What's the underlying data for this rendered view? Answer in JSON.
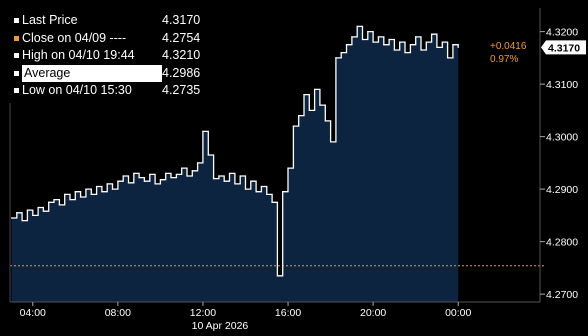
{
  "legend": [
    {
      "label": "Last Price",
      "value": "4.3170",
      "swatch": "#ffffff",
      "highlight": false
    },
    {
      "label": "Close on 04/09 ----",
      "value": "4.2754",
      "swatch": "#f29a2e",
      "highlight": false
    },
    {
      "label": "High on 04/10 19:44",
      "value": "4.3210",
      "swatch": "#ffffff",
      "highlight": false
    },
    {
      "label": "Average",
      "value": "4.2986",
      "swatch": "#ffffff",
      "highlight": true
    },
    {
      "label": "Low on 04/10 15:30",
      "value": "4.2735",
      "swatch": "#ffffff",
      "highlight": false
    }
  ],
  "last_price_tag": "4.3170",
  "change": {
    "abs": "+0.0416",
    "pct": "0.97%"
  },
  "date_label": "10 Apr 2026",
  "colors": {
    "background": "#000000",
    "area_fill": "#0d2440",
    "line": "#ffffff",
    "close_line": "#f29a2e",
    "axis_text": "#ffffff",
    "change_text": "#f29a2e"
  },
  "chart_data": {
    "type": "line",
    "series": [
      {
        "name": "Last Price",
        "x": [
          "03:00",
          "03:15",
          "03:30",
          "03:45",
          "04:00",
          "04:15",
          "04:30",
          "04:45",
          "05:00",
          "05:15",
          "05:30",
          "05:45",
          "06:00",
          "06:15",
          "06:30",
          "06:45",
          "07:00",
          "07:15",
          "07:30",
          "07:45",
          "08:00",
          "08:15",
          "08:30",
          "08:45",
          "09:00",
          "09:15",
          "09:30",
          "09:45",
          "10:00",
          "10:15",
          "10:30",
          "10:45",
          "11:00",
          "11:15",
          "11:30",
          "11:45",
          "12:00",
          "12:15",
          "12:30",
          "12:45",
          "13:00",
          "13:15",
          "13:30",
          "13:45",
          "14:00",
          "14:15",
          "14:30",
          "14:45",
          "15:00",
          "15:15",
          "15:30",
          "15:45",
          "16:00",
          "16:15",
          "16:30",
          "16:45",
          "17:00",
          "17:15",
          "17:30",
          "17:45",
          "18:00",
          "18:15",
          "18:30",
          "18:45",
          "19:00",
          "19:15",
          "19:30",
          "19:45",
          "20:00",
          "20:15",
          "20:30",
          "20:45",
          "21:00",
          "21:15",
          "21:30",
          "21:45",
          "22:00",
          "22:15",
          "22:30",
          "22:45",
          "23:00",
          "23:15",
          "23:30",
          "23:45",
          "24:00"
        ],
        "values": [
          4.2845,
          4.2855,
          4.284,
          4.286,
          4.285,
          4.2865,
          4.2858,
          4.2875,
          4.288,
          4.287,
          4.289,
          4.288,
          4.2895,
          4.2885,
          4.29,
          4.289,
          4.2905,
          4.2895,
          4.291,
          4.29,
          4.2915,
          4.2925,
          4.2912,
          4.293,
          4.2922,
          4.2915,
          4.2928,
          4.291,
          4.2918,
          4.293,
          4.2922,
          4.2928,
          4.294,
          4.2925,
          4.2935,
          4.295,
          4.301,
          4.2965,
          4.292,
          4.2925,
          4.2915,
          4.293,
          4.291,
          4.2925,
          4.29,
          4.2915,
          4.2895,
          4.2905,
          4.289,
          4.2875,
          4.2735,
          4.2895,
          4.294,
          4.302,
          4.304,
          4.308,
          4.305,
          4.309,
          4.306,
          4.303,
          4.299,
          4.315,
          4.316,
          4.3175,
          4.319,
          4.321,
          4.3185,
          4.32,
          4.318,
          4.319,
          4.3175,
          4.3185,
          4.3165,
          4.318,
          4.316,
          4.3175,
          4.319,
          4.3165,
          4.318,
          4.3195,
          4.317,
          4.318,
          4.315,
          4.3175,
          4.317
        ]
      }
    ],
    "reference_lines": [
      {
        "name": "Close on 04/09",
        "value": 4.2754
      }
    ],
    "x_ticks": [
      "04:00",
      "08:00",
      "12:00",
      "16:00",
      "20:00",
      "00:00"
    ],
    "y_ticks": [
      "4.3200",
      "4.3100",
      "4.3000",
      "4.2900",
      "4.2800",
      "4.2700"
    ],
    "y_tick_values": [
      4.32,
      4.31,
      4.3,
      4.29,
      4.28,
      4.27
    ],
    "ylim": [
      4.2685,
      4.3245
    ],
    "x_tick_hours": [
      4,
      8,
      12,
      16,
      20,
      24
    ],
    "x_range_hours": [
      2.93,
      25.4
    ],
    "grid": false,
    "legend_position": "top-left"
  }
}
